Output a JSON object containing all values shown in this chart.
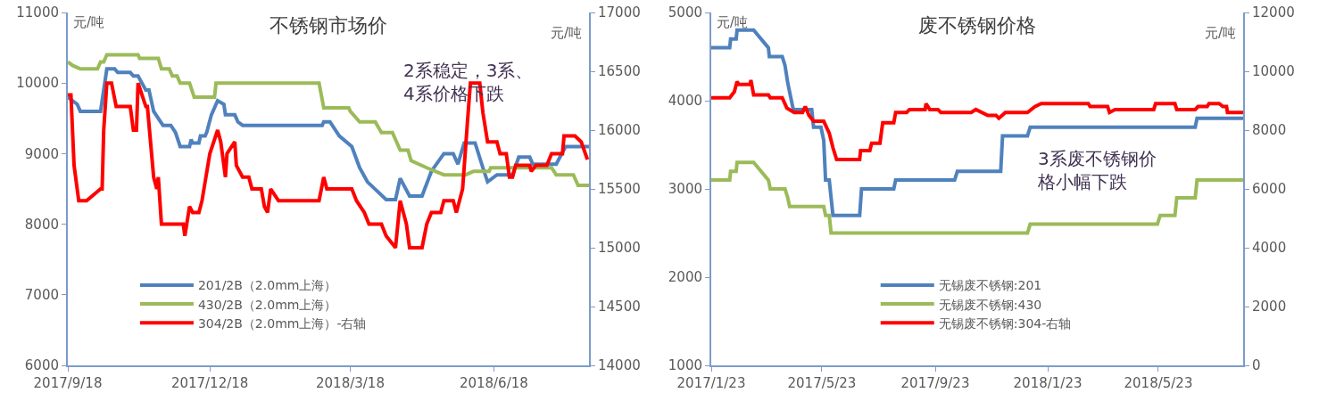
{
  "chart_data": [
    {
      "type": "line",
      "title": "不锈钢市场价",
      "ylabel": "元/吨",
      "y2label": "元/吨",
      "annotations": [
        "2系稳定，3系、4系价格下跌"
      ],
      "legend": "bottom left",
      "marker": "none",
      "xlim": [
        "2017-09-18",
        "2018-08-18"
      ],
      "xticks": [
        {
          "value": "2017-09-18",
          "label": "2017/9/18"
        },
        {
          "value": "2017-12-18",
          "label": "2017/12/18"
        },
        {
          "value": "2018-03-18",
          "label": "2018/3/18"
        },
        {
          "value": "2018-06-18",
          "label": "2018/6/18"
        }
      ],
      "ylim": [
        6000,
        11000
      ],
      "yticks": [
        6000,
        7000,
        8000,
        9000,
        10000,
        11000
      ],
      "y2lim": [
        14000,
        17000
      ],
      "y2ticks": [
        14000,
        14500,
        15000,
        15500,
        16000,
        16500,
        17000
      ],
      "series": [
        {
          "name": "201/2B（2.0mm上海）",
          "color": "#4f81bd",
          "x": [
            "2017-09-18",
            "2017-09-24",
            "2017-09-26",
            "2017-10-09",
            "2017-10-11",
            "2017-10-13",
            "2017-10-18",
            "2017-10-20",
            "2017-10-28",
            "2017-10-30",
            "2017-11-02",
            "2017-11-07",
            "2017-11-09",
            "2017-11-12",
            "2017-11-15",
            "2017-11-18",
            "2017-11-23",
            "2017-11-26",
            "2017-11-29",
            "2017-12-05",
            "2017-12-06",
            "2017-12-07",
            "2017-12-11",
            "2017-12-12",
            "2017-12-15",
            "2017-12-16",
            "2017-12-19",
            "2017-12-23",
            "2017-12-27",
            "2017-12-28",
            "2018-01-03",
            "2018-01-05",
            "2018-01-08",
            "2018-02-28",
            "2018-03-01",
            "2018-03-05",
            "2018-03-11",
            "2018-03-19",
            "2018-03-24",
            "2018-03-29",
            "2018-04-10",
            "2018-04-16",
            "2018-04-19",
            "2018-04-25",
            "2018-05-03",
            "2018-05-09",
            "2018-05-17",
            "2018-05-23",
            "2018-05-26",
            "2018-05-30",
            "2018-06-06",
            "2018-06-11",
            "2018-06-14",
            "2018-06-20",
            "2018-06-30",
            "2018-07-04",
            "2018-07-11",
            "2018-07-13",
            "2018-07-28",
            "2018-08-03",
            "2018-08-18"
          ],
          "values": [
            9800,
            9700,
            9600,
            9600,
            9900,
            10200,
            10200,
            10150,
            10150,
            10100,
            10100,
            9900,
            9900,
            9600,
            9500,
            9400,
            9400,
            9300,
            9100,
            9100,
            9200,
            9150,
            9150,
            9250,
            9250,
            9300,
            9550,
            9750,
            9700,
            9550,
            9550,
            9450,
            9400,
            9400,
            9450,
            9450,
            9250,
            9100,
            8800,
            8600,
            8350,
            8350,
            8650,
            8400,
            8400,
            8750,
            9000,
            9000,
            8850,
            9150,
            9150,
            8800,
            8600,
            8700,
            8700,
            8950,
            8950,
            8850,
            8850,
            9100,
            9100
          ]
        },
        {
          "name": "430/2B（2.0mm上海）",
          "color": "#9bbb59",
          "x": [
            "2017-09-18",
            "2017-09-21",
            "2017-09-26",
            "2017-10-07",
            "2017-10-09",
            "2017-10-11",
            "2017-10-13",
            "2017-11-02",
            "2017-11-03",
            "2017-11-15",
            "2017-11-17",
            "2017-11-22",
            "2017-11-24",
            "2017-11-27",
            "2017-11-29",
            "2017-12-05",
            "2017-12-08",
            "2017-12-21",
            "2017-12-22",
            "2018-02-26",
            "2018-03-01",
            "2018-03-17",
            "2018-03-18",
            "2018-03-24",
            "2018-04-03",
            "2018-04-07",
            "2018-04-14",
            "2018-04-19",
            "2018-04-24",
            "2018-04-26",
            "2018-05-06",
            "2018-05-17",
            "2018-05-31",
            "2018-06-05",
            "2018-06-15",
            "2018-06-16",
            "2018-07-25",
            "2018-07-28",
            "2018-08-08",
            "2018-08-11",
            "2018-08-18"
          ],
          "values": [
            10300,
            10250,
            10200,
            10200,
            10300,
            10300,
            10400,
            10400,
            10350,
            10350,
            10200,
            10200,
            10100,
            10100,
            10000,
            10000,
            9800,
            9800,
            10000,
            10000,
            9650,
            9650,
            9600,
            9450,
            9450,
            9300,
            9300,
            9050,
            9050,
            8900,
            8800,
            8700,
            8700,
            8750,
            8750,
            8800,
            8800,
            8700,
            8700,
            8550,
            8550
          ]
        },
        {
          "name": "304/2B（2.0mm上海）-右轴",
          "color": "#ff0000",
          "axis": "y2",
          "x": [
            "2017-09-18",
            "2017-09-20",
            "2017-09-22",
            "2017-09-25",
            "2017-09-30",
            "2017-10-09",
            "2017-10-10",
            "2017-10-11",
            "2017-10-13",
            "2017-10-16",
            "2017-10-19",
            "2017-10-28",
            "2017-10-30",
            "2017-11-01",
            "2017-11-02",
            "2017-11-07",
            "2017-11-08",
            "2017-11-10",
            "2017-11-12",
            "2017-11-14",
            "2017-11-15",
            "2017-11-17",
            "2017-12-01",
            "2017-12-02",
            "2017-12-05",
            "2017-12-07",
            "2017-12-11",
            "2017-12-13",
            "2017-12-18",
            "2017-12-23",
            "2017-12-25",
            "2017-12-28",
            "2017-12-29",
            "2018-01-03",
            "2018-01-04",
            "2018-01-08",
            "2018-01-12",
            "2018-01-14",
            "2018-01-20",
            "2018-01-22",
            "2018-01-24",
            "2018-01-26",
            "2018-01-31",
            "2018-02-26",
            "2018-03-01",
            "2018-03-03",
            "2018-03-19",
            "2018-03-22",
            "2018-03-27",
            "2018-03-30",
            "2018-04-07",
            "2018-04-10",
            "2018-04-16",
            "2018-04-19",
            "2018-04-23",
            "2018-04-25",
            "2018-05-03",
            "2018-05-06",
            "2018-05-09",
            "2018-05-15",
            "2018-05-17",
            "2018-05-23",
            "2018-05-25",
            "2018-05-29",
            "2018-06-01",
            "2018-06-03",
            "2018-06-09",
            "2018-06-11",
            "2018-06-14",
            "2018-06-20",
            "2018-06-22",
            "2018-06-26",
            "2018-06-28",
            "2018-06-30",
            "2018-07-02",
            "2018-07-11",
            "2018-07-12",
            "2018-07-15",
            "2018-07-22",
            "2018-07-25",
            "2018-08-01",
            "2018-08-02",
            "2018-08-09",
            "2018-08-13",
            "2018-08-17"
          ],
          "values": [
            16300,
            16300,
            15700,
            15400,
            15400,
            15500,
            15500,
            16000,
            16400,
            16400,
            16200,
            16200,
            16000,
            16000,
            16400,
            16200,
            16200,
            15900,
            15600,
            15500,
            15600,
            15200,
            15200,
            15100,
            15350,
            15300,
            15300,
            15400,
            15800,
            16000,
            15900,
            15600,
            15800,
            15900,
            15700,
            15600,
            15600,
            15500,
            15500,
            15350,
            15300,
            15500,
            15400,
            15400,
            15600,
            15500,
            15500,
            15400,
            15300,
            15200,
            15200,
            15100,
            15000,
            15400,
            15200,
            15000,
            15000,
            15200,
            15300,
            15300,
            15400,
            15400,
            15300,
            15500,
            16050,
            16400,
            16400,
            16150,
            15900,
            15900,
            15800,
            15800,
            15600,
            15600,
            15700,
            15700,
            15650,
            15700,
            15700,
            15800,
            15800,
            15950,
            15950,
            15900,
            15750
          ]
        }
      ]
    },
    {
      "type": "line",
      "title": "废不锈钢价格",
      "ylabel": "元/吨",
      "y2label": "元/吨",
      "annotations": [
        "3系废不锈钢价格小幅下跌"
      ],
      "legend": "bottom",
      "marker": "none",
      "xlim": [
        "2017-01-23",
        "2018-08-23"
      ],
      "xticks": [
        {
          "value": "2017-01-23",
          "label": "2017/1/23"
        },
        {
          "value": "2017-05-23",
          "label": "2017/5/23"
        },
        {
          "value": "2017-09-23",
          "label": "2017/9/23"
        },
        {
          "value": "2018-01-23",
          "label": "2018/1/23"
        },
        {
          "value": "2018-05-23",
          "label": "2018/5/23"
        }
      ],
      "ylim": [
        1000,
        5000
      ],
      "yticks": [
        1000,
        2000,
        3000,
        4000,
        5000
      ],
      "y2lim": [
        0,
        12000
      ],
      "y2ticks": [
        0,
        2000,
        4000,
        6000,
        8000,
        10000,
        12000
      ],
      "series": [
        {
          "name": "无锡废不锈钢:201",
          "color": "#4f81bd",
          "x": [
            "2017-01-23",
            "2017-02-12",
            "2017-02-13",
            "2017-02-19",
            "2017-02-20",
            "2017-03-10",
            "2017-03-26",
            "2017-03-27",
            "2017-04-10",
            "2017-04-13",
            "2017-04-16",
            "2017-04-19",
            "2017-04-22",
            "2017-05-12",
            "2017-05-14",
            "2017-05-22",
            "2017-05-25",
            "2017-05-27",
            "2017-05-31",
            "2017-06-04",
            "2017-07-03",
            "2017-07-05",
            "2017-08-09",
            "2017-08-11",
            "2017-10-14",
            "2017-10-17",
            "2017-12-03",
            "2017-12-05",
            "2018-01-01",
            "2018-01-04",
            "2018-07-02",
            "2018-07-04",
            "2018-08-23"
          ],
          "values": [
            4600,
            4600,
            4700,
            4700,
            4800,
            4800,
            4600,
            4500,
            4500,
            4400,
            4200,
            4050,
            3900,
            3900,
            3700,
            3700,
            3550,
            3100,
            3100,
            2700,
            2700,
            3000,
            3000,
            3100,
            3100,
            3200,
            3200,
            3600,
            3600,
            3700,
            3700,
            3800,
            3800
          ]
        },
        {
          "name": "无锡废不锈钢:430",
          "color": "#9bbb59",
          "x": [
            "2017-01-23",
            "2017-02-12",
            "2017-02-13",
            "2017-02-19",
            "2017-02-20",
            "2017-03-10",
            "2017-03-26",
            "2017-03-28",
            "2017-04-13",
            "2017-04-16",
            "2017-04-18",
            "2017-05-25",
            "2017-05-27",
            "2017-05-31",
            "2017-06-02",
            "2018-01-01",
            "2018-01-04",
            "2018-05-22",
            "2018-05-25",
            "2018-06-10",
            "2018-06-12",
            "2018-07-02",
            "2018-07-04",
            "2018-08-23"
          ],
          "values": [
            3100,
            3100,
            3200,
            3200,
            3300,
            3300,
            3100,
            3000,
            3000,
            2900,
            2800,
            2800,
            2700,
            2700,
            2500,
            2500,
            2600,
            2600,
            2700,
            2700,
            2900,
            2900,
            3100,
            3100
          ]
        },
        {
          "name": "无锡废不锈钢:304-右轴",
          "color": "#ff0000",
          "axis": "y2",
          "x": [
            "2017-01-23",
            "2017-02-12",
            "2017-02-17",
            "2017-02-20",
            "2017-02-22",
            "2017-03-06",
            "2017-03-07",
            "2017-03-10",
            "2017-03-26",
            "2017-03-28",
            "2017-04-10",
            "2017-04-15",
            "2017-04-23",
            "2017-05-02",
            "2017-05-05",
            "2017-05-09",
            "2017-05-14",
            "2017-05-25",
            "2017-05-31",
            "2017-06-04",
            "2017-06-08",
            "2017-07-03",
            "2017-07-04",
            "2017-07-14",
            "2017-07-16",
            "2017-07-25",
            "2017-07-28",
            "2017-08-09",
            "2017-08-11",
            "2017-08-23",
            "2017-08-26",
            "2017-09-12",
            "2017-09-13",
            "2017-09-17",
            "2017-09-26",
            "2017-09-29",
            "2017-11-01",
            "2017-11-06",
            "2017-11-19",
            "2017-11-28",
            "2017-12-01",
            "2017-12-08",
            "2018-01-01",
            "2018-01-09",
            "2018-01-16",
            "2018-03-08",
            "2018-03-10",
            "2018-03-29",
            "2018-03-31",
            "2018-04-06",
            "2018-04-13",
            "2018-04-19",
            "2018-05-18",
            "2018-05-20",
            "2018-06-10",
            "2018-06-12",
            "2018-07-02",
            "2018-07-05",
            "2018-07-15",
            "2018-07-17",
            "2018-07-28",
            "2018-08-01",
            "2018-08-05",
            "2018-08-06",
            "2018-08-23"
          ],
          "values": [
            9100,
            9100,
            9300,
            9650,
            9550,
            9550,
            9700,
            9200,
            9200,
            9100,
            9100,
            8750,
            8600,
            8600,
            8800,
            8500,
            8300,
            8300,
            7900,
            7400,
            7000,
            7000,
            7300,
            7300,
            7550,
            7550,
            8250,
            8250,
            8600,
            8600,
            8700,
            8700,
            8900,
            8700,
            8700,
            8600,
            8600,
            8700,
            8500,
            8500,
            8400,
            8600,
            8600,
            8800,
            8900,
            8900,
            8800,
            8800,
            8600,
            8700,
            8700,
            8700,
            8700,
            8900,
            8900,
            8700,
            8700,
            8800,
            8800,
            8900,
            8900,
            8800,
            8800,
            8600,
            8600
          ]
        }
      ]
    }
  ]
}
